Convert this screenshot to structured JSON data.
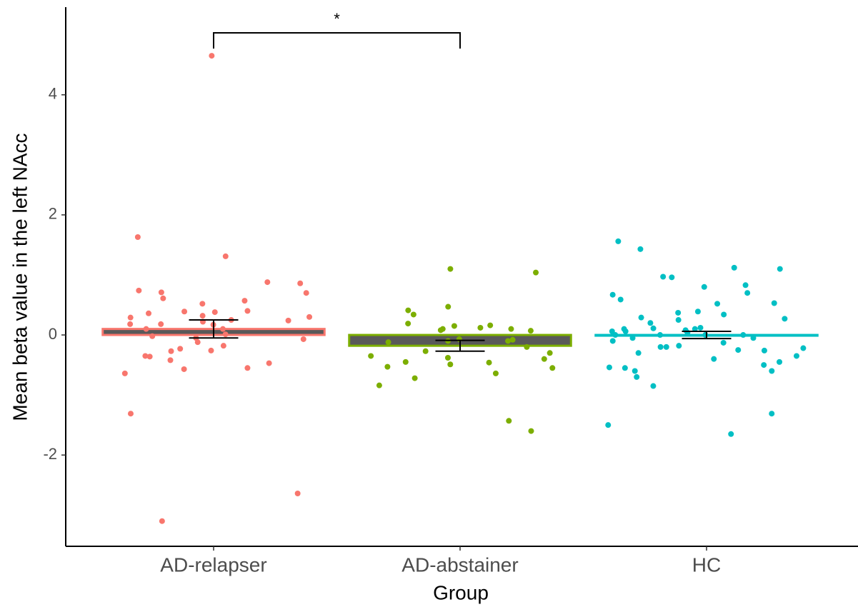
{
  "chart_data": {
    "type": "bar",
    "x_label": "Group",
    "y_label": "Mean beta value in the left NAcc",
    "categories": [
      "AD-relapser",
      "AD-abstainer",
      "HC"
    ],
    "values": [
      0.1,
      -0.18,
      0.0
    ],
    "errors": [
      0.15,
      0.09,
      0.06
    ],
    "colors": [
      "#F8766D",
      "#7CAE00",
      "#00BFC4"
    ],
    "bar_fill": "#595959",
    "points": [
      [
        4.65,
        1.31,
        1.63,
        0.61,
        0.52,
        0.38,
        0.29,
        0.24,
        0.25,
        -0.05,
        -0.27,
        -0.47,
        0.57,
        0.18,
        0.17,
        0.71,
        0.4,
        0.1,
        0.01,
        -0.26,
        -0.36,
        -0.64,
        0.86,
        0.7,
        0.74,
        0.32,
        -0.07,
        -0.02,
        -0.12,
        -0.18,
        -0.55,
        -0.42,
        0.36,
        0.3,
        0.22,
        0.18,
        0.1,
        -0.23,
        -0.35,
        0.88,
        0.39,
        -0.57,
        -1.31,
        -2.64,
        -3.1
      ],
      [
        1.04,
        0.15,
        0.19,
        0.12,
        0.08,
        0.1,
        0.16,
        -0.12,
        -0.45,
        -0.49,
        -0.84,
        -0.35,
        0.1,
        -0.64,
        -0.46,
        -0.3,
        -0.27,
        -0.38,
        -0.07,
        -0.1,
        -0.2,
        1.1,
        0.47,
        0.34,
        0.41,
        -0.1,
        -0.53,
        -0.72,
        -0.08,
        0.07,
        -0.55,
        -0.4,
        -1.6,
        -1.43
      ],
      [
        1.12,
        0.52,
        0.67,
        0.96,
        0.25,
        0.2,
        0.08,
        0.0,
        -0.05,
        -0.2,
        -0.35,
        -0.54,
        -0.18,
        -0.13,
        0.1,
        0.06,
        -0.22,
        0.39,
        1.1,
        0.34,
        0.12,
        -0.05,
        -0.26,
        0.27,
        0.0,
        -0.1,
        -0.3,
        0.7,
        0.83,
        -0.25,
        -0.45,
        -0.85,
        -1.31,
        0.29,
        0.0,
        0.1,
        0.06,
        -0.4,
        -0.6,
        0.53,
        -0.7,
        0.0,
        1.56,
        0.97,
        0.8,
        0.59,
        0.37,
        0.11,
        -0.2,
        -0.5,
        -0.6,
        1.43,
        -1.5,
        -1.65,
        -0.55,
        0.04
      ]
    ],
    "annotation": "*",
    "ylim": [
      -3.52,
      5.46
    ],
    "yticks": [
      -2,
      0,
      2,
      4
    ],
    "grid": false
  }
}
